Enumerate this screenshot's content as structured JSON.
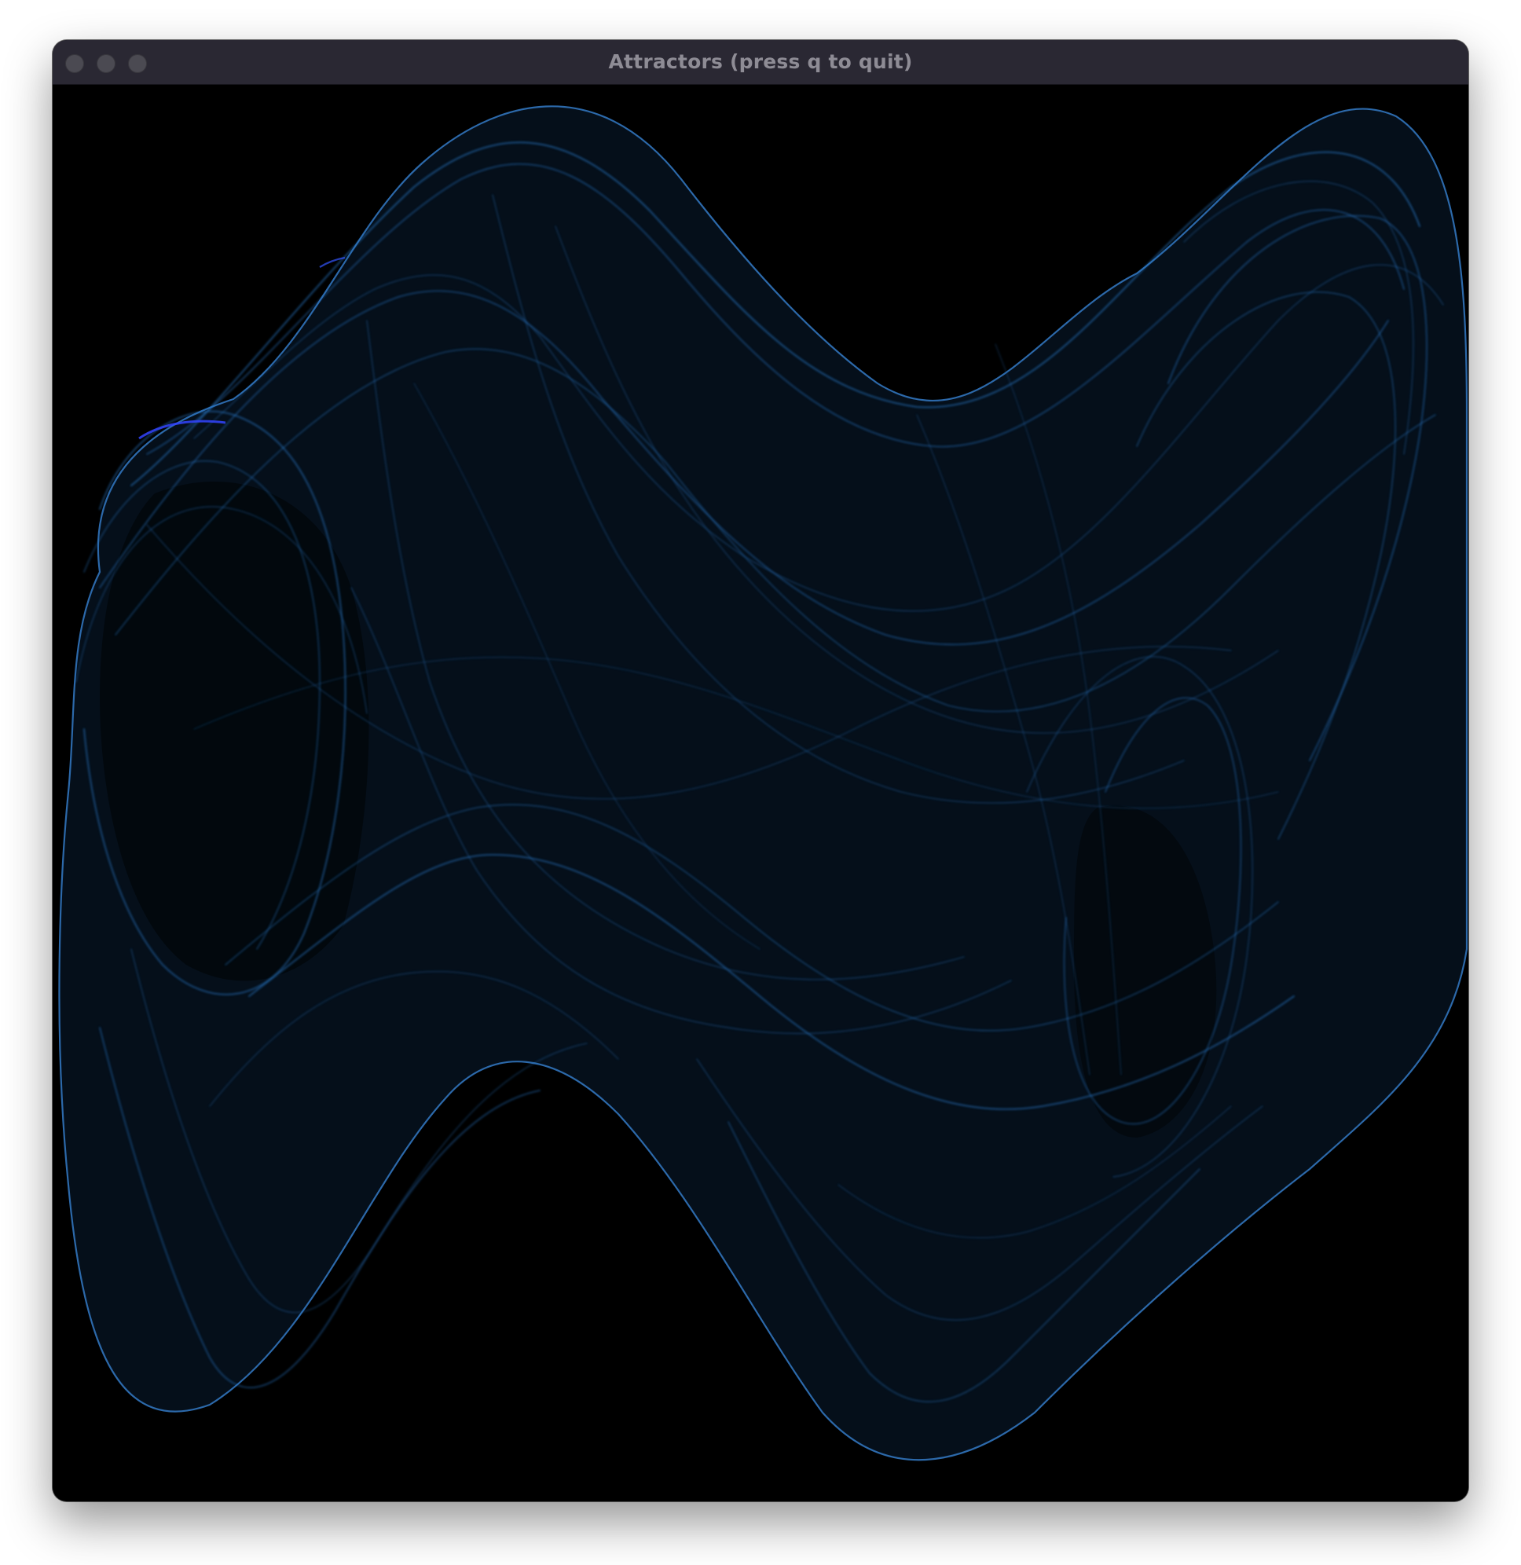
{
  "window": {
    "title": "Attractors (press q to quit)",
    "traffic_lights": [
      "close-button",
      "minimize-button",
      "zoom-button"
    ],
    "background_color": "#000000",
    "titlebar_color": "#2a2833"
  },
  "visualization": {
    "kind": "strange-attractor",
    "line_color": "#2a7fd4",
    "fill_color": "#06101c",
    "highlight_color": "#3344ff"
  }
}
